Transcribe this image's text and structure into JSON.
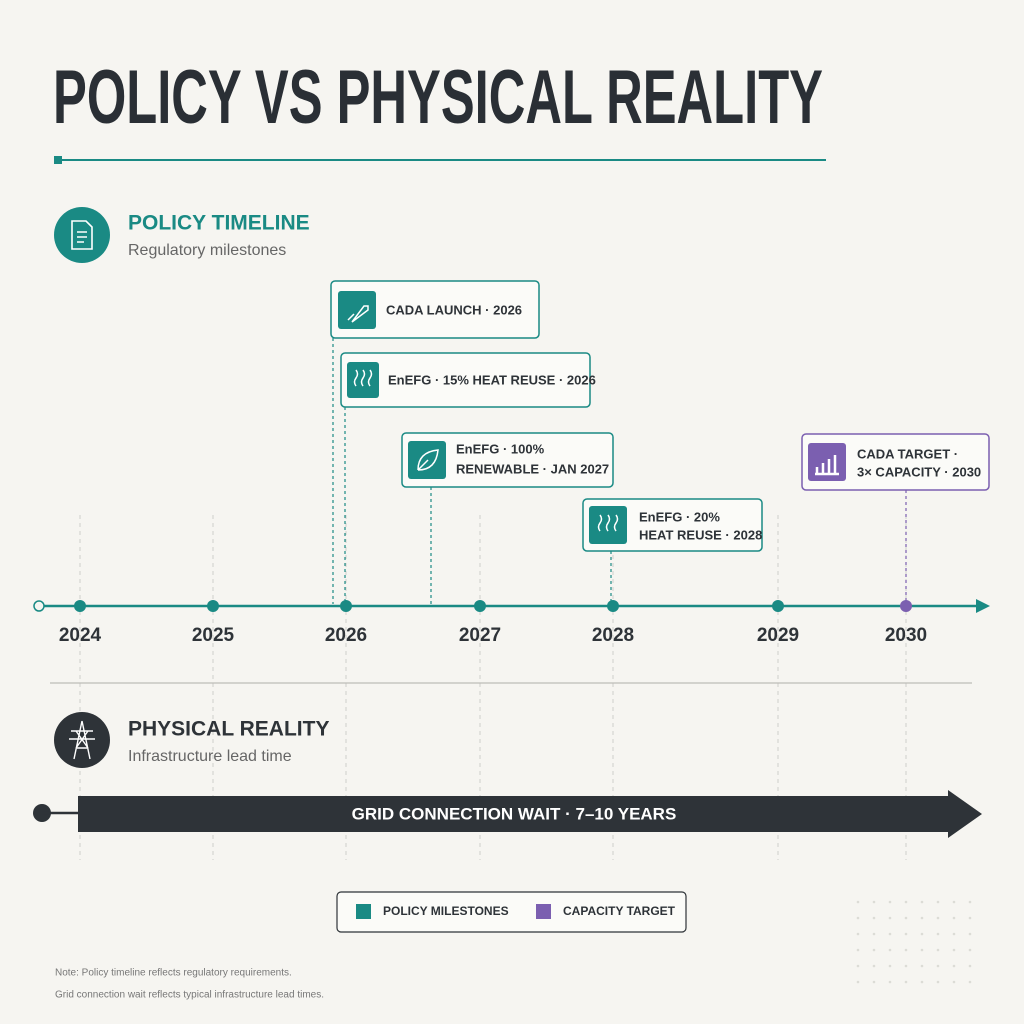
{
  "header": {
    "title": "POLICY VS PHYSICAL REALITY"
  },
  "policy": {
    "title": "POLICY TIMELINE",
    "subtitle": "Regulatory milestones",
    "milestones": [
      {
        "lines": [
          "CADA LAUNCH · 2026"
        ]
      },
      {
        "lines": [
          "EnEFG · 15% HEAT REUSE · 2026"
        ]
      },
      {
        "lines": [
          "EnEFG · 100%",
          "RENEWABLE · JAN 2027"
        ]
      },
      {
        "lines": [
          "EnEFG · 20%",
          "HEAT REUSE · 2028"
        ]
      },
      {
        "lines": [
          "CADA TARGET ·",
          "3× CAPACITY · 2030"
        ]
      }
    ],
    "years": [
      "2024",
      "2025",
      "2026",
      "2027",
      "2028",
      "2029",
      "2030"
    ]
  },
  "physical": {
    "title": "PHYSICAL REALITY",
    "subtitle": "Infrastructure lead time",
    "bar_label": "GRID CONNECTION WAIT  ·  7–10 YEARS"
  },
  "legend": [
    "POLICY MILESTONES",
    "CAPACITY TARGET"
  ],
  "notes": [
    "Note: Policy timeline reflects regulatory requirements.",
    "Grid connection wait reflects typical infrastructure lead times."
  ]
}
